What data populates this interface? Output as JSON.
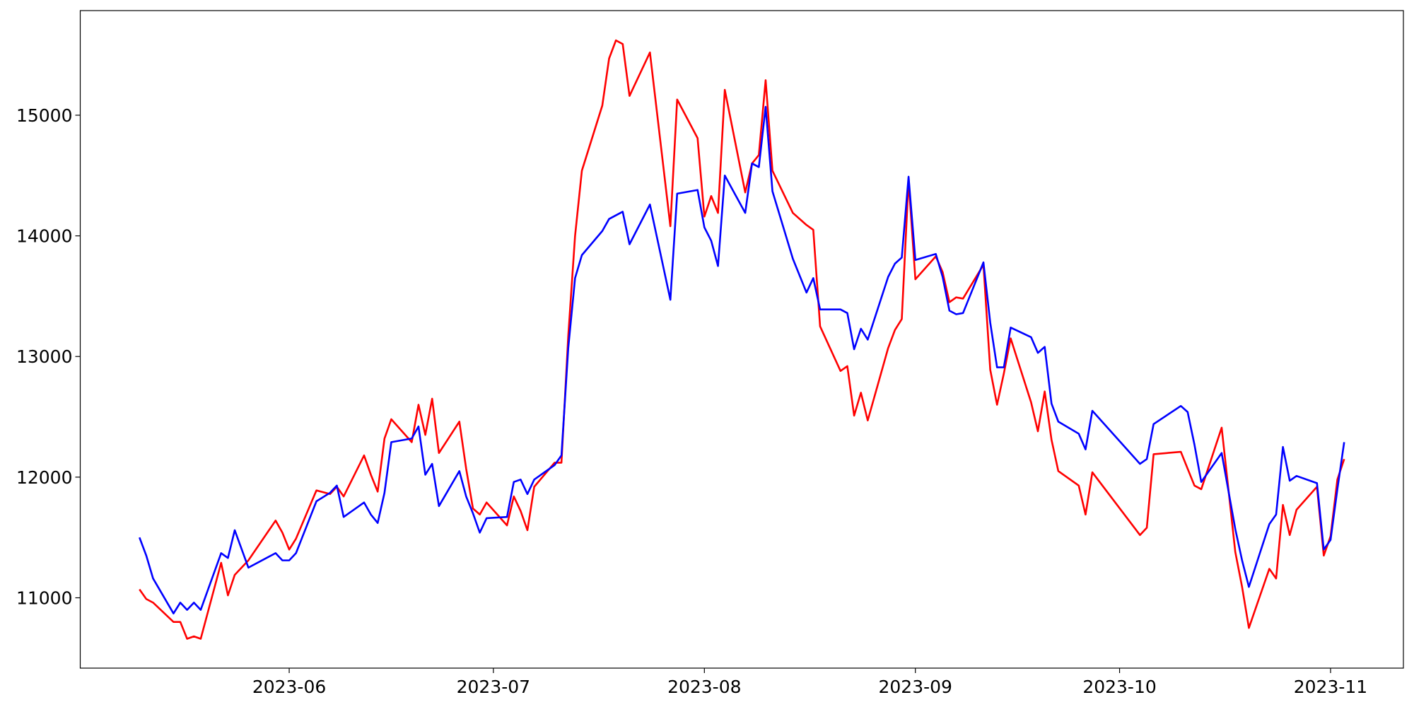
{
  "chart_data": {
    "type": "line",
    "x": [
      19487,
      19488,
      19489,
      19492,
      19493,
      19494,
      19495,
      19496,
      19499,
      19500,
      19501,
      19503,
      19507,
      19508,
      19509,
      19510,
      19513,
      19515,
      19516,
      19517,
      19520,
      19521,
      19522,
      19523,
      19524,
      19527,
      19528,
      19529,
      19530,
      19531,
      19534,
      19535,
      19536,
      19537,
      19538,
      19541,
      19542,
      19543,
      19544,
      19545,
      19548,
      19549,
      19550,
      19551,
      19552,
      19555,
      19556,
      19557,
      19558,
      19559,
      19562,
      19565,
      19566,
      19569,
      19570,
      19571,
      19572,
      19573,
      19576,
      19577,
      19578,
      19579,
      19580,
      19583,
      19585,
      19586,
      19587,
      19590,
      19591,
      19592,
      19593,
      19594,
      19597,
      19598,
      19599,
      19600,
      19601,
      19604,
      19605,
      19606,
      19607,
      19608,
      19611,
      19612,
      19613,
      19614,
      19615,
      19618,
      19619,
      19620,
      19621,
      19622,
      19625,
      19626,
      19627,
      19634,
      19635,
      19636,
      19640,
      19641,
      19642,
      19643,
      19646,
      19648,
      19649,
      19650,
      19653,
      19654,
      19655,
      19656,
      19657,
      19660,
      19661,
      19662,
      19663,
      19664
    ],
    "series": [
      {
        "color": "#ff0000",
        "values": [
          11070,
          10990,
          10960,
          10800,
          10800,
          10660,
          10680,
          10660,
          11290,
          11020,
          11190,
          11310,
          11640,
          11540,
          11400,
          11490,
          11890,
          11860,
          11920,
          11840,
          12180,
          12020,
          11880,
          12320,
          12480,
          12290,
          12600,
          12350,
          12650,
          12200,
          12460,
          12070,
          11740,
          11690,
          11790,
          11600,
          11840,
          11720,
          11560,
          11920,
          12120,
          12120,
          13170,
          14000,
          14540,
          15080,
          15470,
          15620,
          15590,
          15160,
          15520,
          14080,
          15130,
          14810,
          14160,
          14330,
          14190,
          15210,
          14360,
          14600,
          14670,
          15290,
          14540,
          14190,
          14090,
          14050,
          13250,
          12880,
          12920,
          12510,
          12700,
          12470,
          13070,
          13220,
          13310,
          14460,
          13640,
          13830,
          13700,
          13450,
          13490,
          13480,
          13760,
          12890,
          12600,
          12860,
          13150,
          12620,
          12380,
          12710,
          12310,
          12050,
          11930,
          11690,
          12040,
          11520,
          11580,
          12190,
          12210,
          12070,
          11930,
          11900,
          12410,
          11380,
          11090,
          10750,
          11240,
          11160,
          11770,
          11520,
          11730,
          11920,
          11350,
          11510,
          11980,
          12150
        ]
      },
      {
        "color": "#0000ff",
        "values": [
          11500,
          11350,
          11160,
          10870,
          10960,
          10900,
          10960,
          10900,
          11370,
          11330,
          11560,
          11250,
          11370,
          11310,
          11310,
          11370,
          11800,
          11870,
          11930,
          11670,
          11790,
          11690,
          11620,
          11870,
          12290,
          12320,
          12420,
          12020,
          12110,
          11760,
          12050,
          11840,
          11700,
          11540,
          11660,
          11670,
          11960,
          11980,
          11860,
          11980,
          12100,
          12180,
          13070,
          13650,
          13840,
          14040,
          14140,
          14170,
          14200,
          13930,
          14260,
          13470,
          14350,
          14380,
          14070,
          13960,
          13750,
          14500,
          14190,
          14600,
          14570,
          15070,
          14370,
          13810,
          13530,
          13650,
          13390,
          13390,
          13360,
          13060,
          13230,
          13140,
          13660,
          13770,
          13820,
          14490,
          13800,
          13850,
          13660,
          13380,
          13350,
          13360,
          13780,
          13280,
          12910,
          12910,
          13240,
          13160,
          13030,
          13080,
          12610,
          12460,
          12360,
          12230,
          12550,
          12110,
          12150,
          12440,
          12590,
          12540,
          12270,
          11960,
          12200,
          11570,
          11310,
          11090,
          11610,
          11690,
          12250,
          11970,
          12010,
          11950,
          11400,
          11480,
          11900,
          12290
        ]
      }
    ],
    "xlim": [
      19478.3,
      19672.7
    ],
    "xticks": [
      {
        "value": 19509,
        "label": "2023-06"
      },
      {
        "value": 19539,
        "label": "2023-07"
      },
      {
        "value": 19570,
        "label": "2023-08"
      },
      {
        "value": 19601,
        "label": "2023-09"
      },
      {
        "value": 19631,
        "label": "2023-10"
      },
      {
        "value": 19662,
        "label": "2023-11"
      }
    ],
    "ylim": [
      10417,
      15867
    ],
    "yticks": [
      11000,
      12000,
      13000,
      14000,
      15000
    ],
    "grid": false
  }
}
